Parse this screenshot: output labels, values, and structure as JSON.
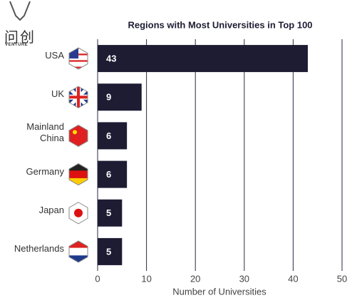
{
  "logo": {
    "mark": "问创",
    "word": "VENTURE"
  },
  "chart_data": {
    "type": "bar",
    "orientation": "horizontal",
    "title": "Regions with Most Universities in Top 100",
    "categories": [
      "USA",
      "UK",
      "Mainland China",
      "Germany",
      "Japan",
      "Netherlands"
    ],
    "values": [
      43,
      9,
      6,
      6,
      5,
      5
    ],
    "color": "#1d1c33",
    "xlim": [
      0,
      50
    ],
    "xticks": [
      0,
      10,
      20,
      30,
      40,
      50
    ],
    "xlabel": "Number of Universities",
    "grid": true
  }
}
